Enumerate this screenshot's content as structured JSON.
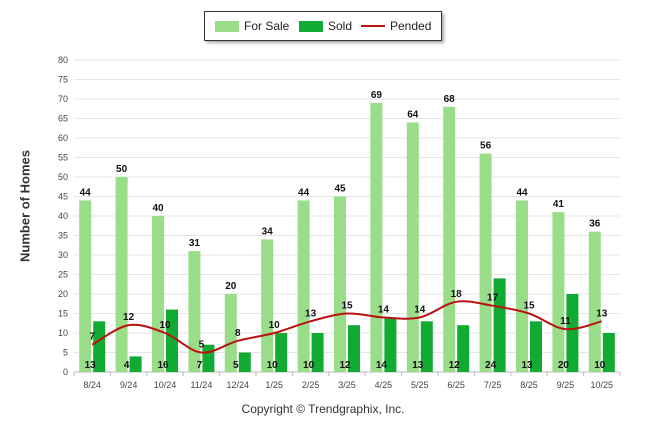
{
  "chart_data": {
    "type": "bar",
    "title": "",
    "xlabel": "",
    "ylabel": "Number of Homes",
    "ylim": [
      0,
      80
    ],
    "ytick_step": 5,
    "categories": [
      "8/24",
      "9/24",
      "10/24",
      "11/24",
      "12/24",
      "1/25",
      "2/25",
      "3/25",
      "4/25",
      "5/25",
      "6/25",
      "7/25",
      "8/25",
      "9/25",
      "10/25"
    ],
    "series": [
      {
        "name": "For Sale",
        "kind": "bar",
        "color": "#99dd88",
        "values": [
          44,
          50,
          40,
          31,
          20,
          34,
          44,
          45,
          69,
          64,
          68,
          56,
          44,
          41,
          36
        ]
      },
      {
        "name": "Sold",
        "kind": "bar",
        "color": "#11aa33",
        "values": [
          13,
          4,
          16,
          7,
          5,
          10,
          10,
          12,
          14,
          13,
          12,
          24,
          13,
          20,
          10
        ]
      },
      {
        "name": "Pended",
        "kind": "line",
        "color": "#bb1111",
        "values": [
          7,
          12,
          10,
          5,
          8,
          10,
          13,
          15,
          14,
          14,
          18,
          17,
          15,
          11,
          13
        ]
      }
    ],
    "legend_position": "top-center"
  },
  "copyright": "Copyright © Trendgraphix, Inc."
}
